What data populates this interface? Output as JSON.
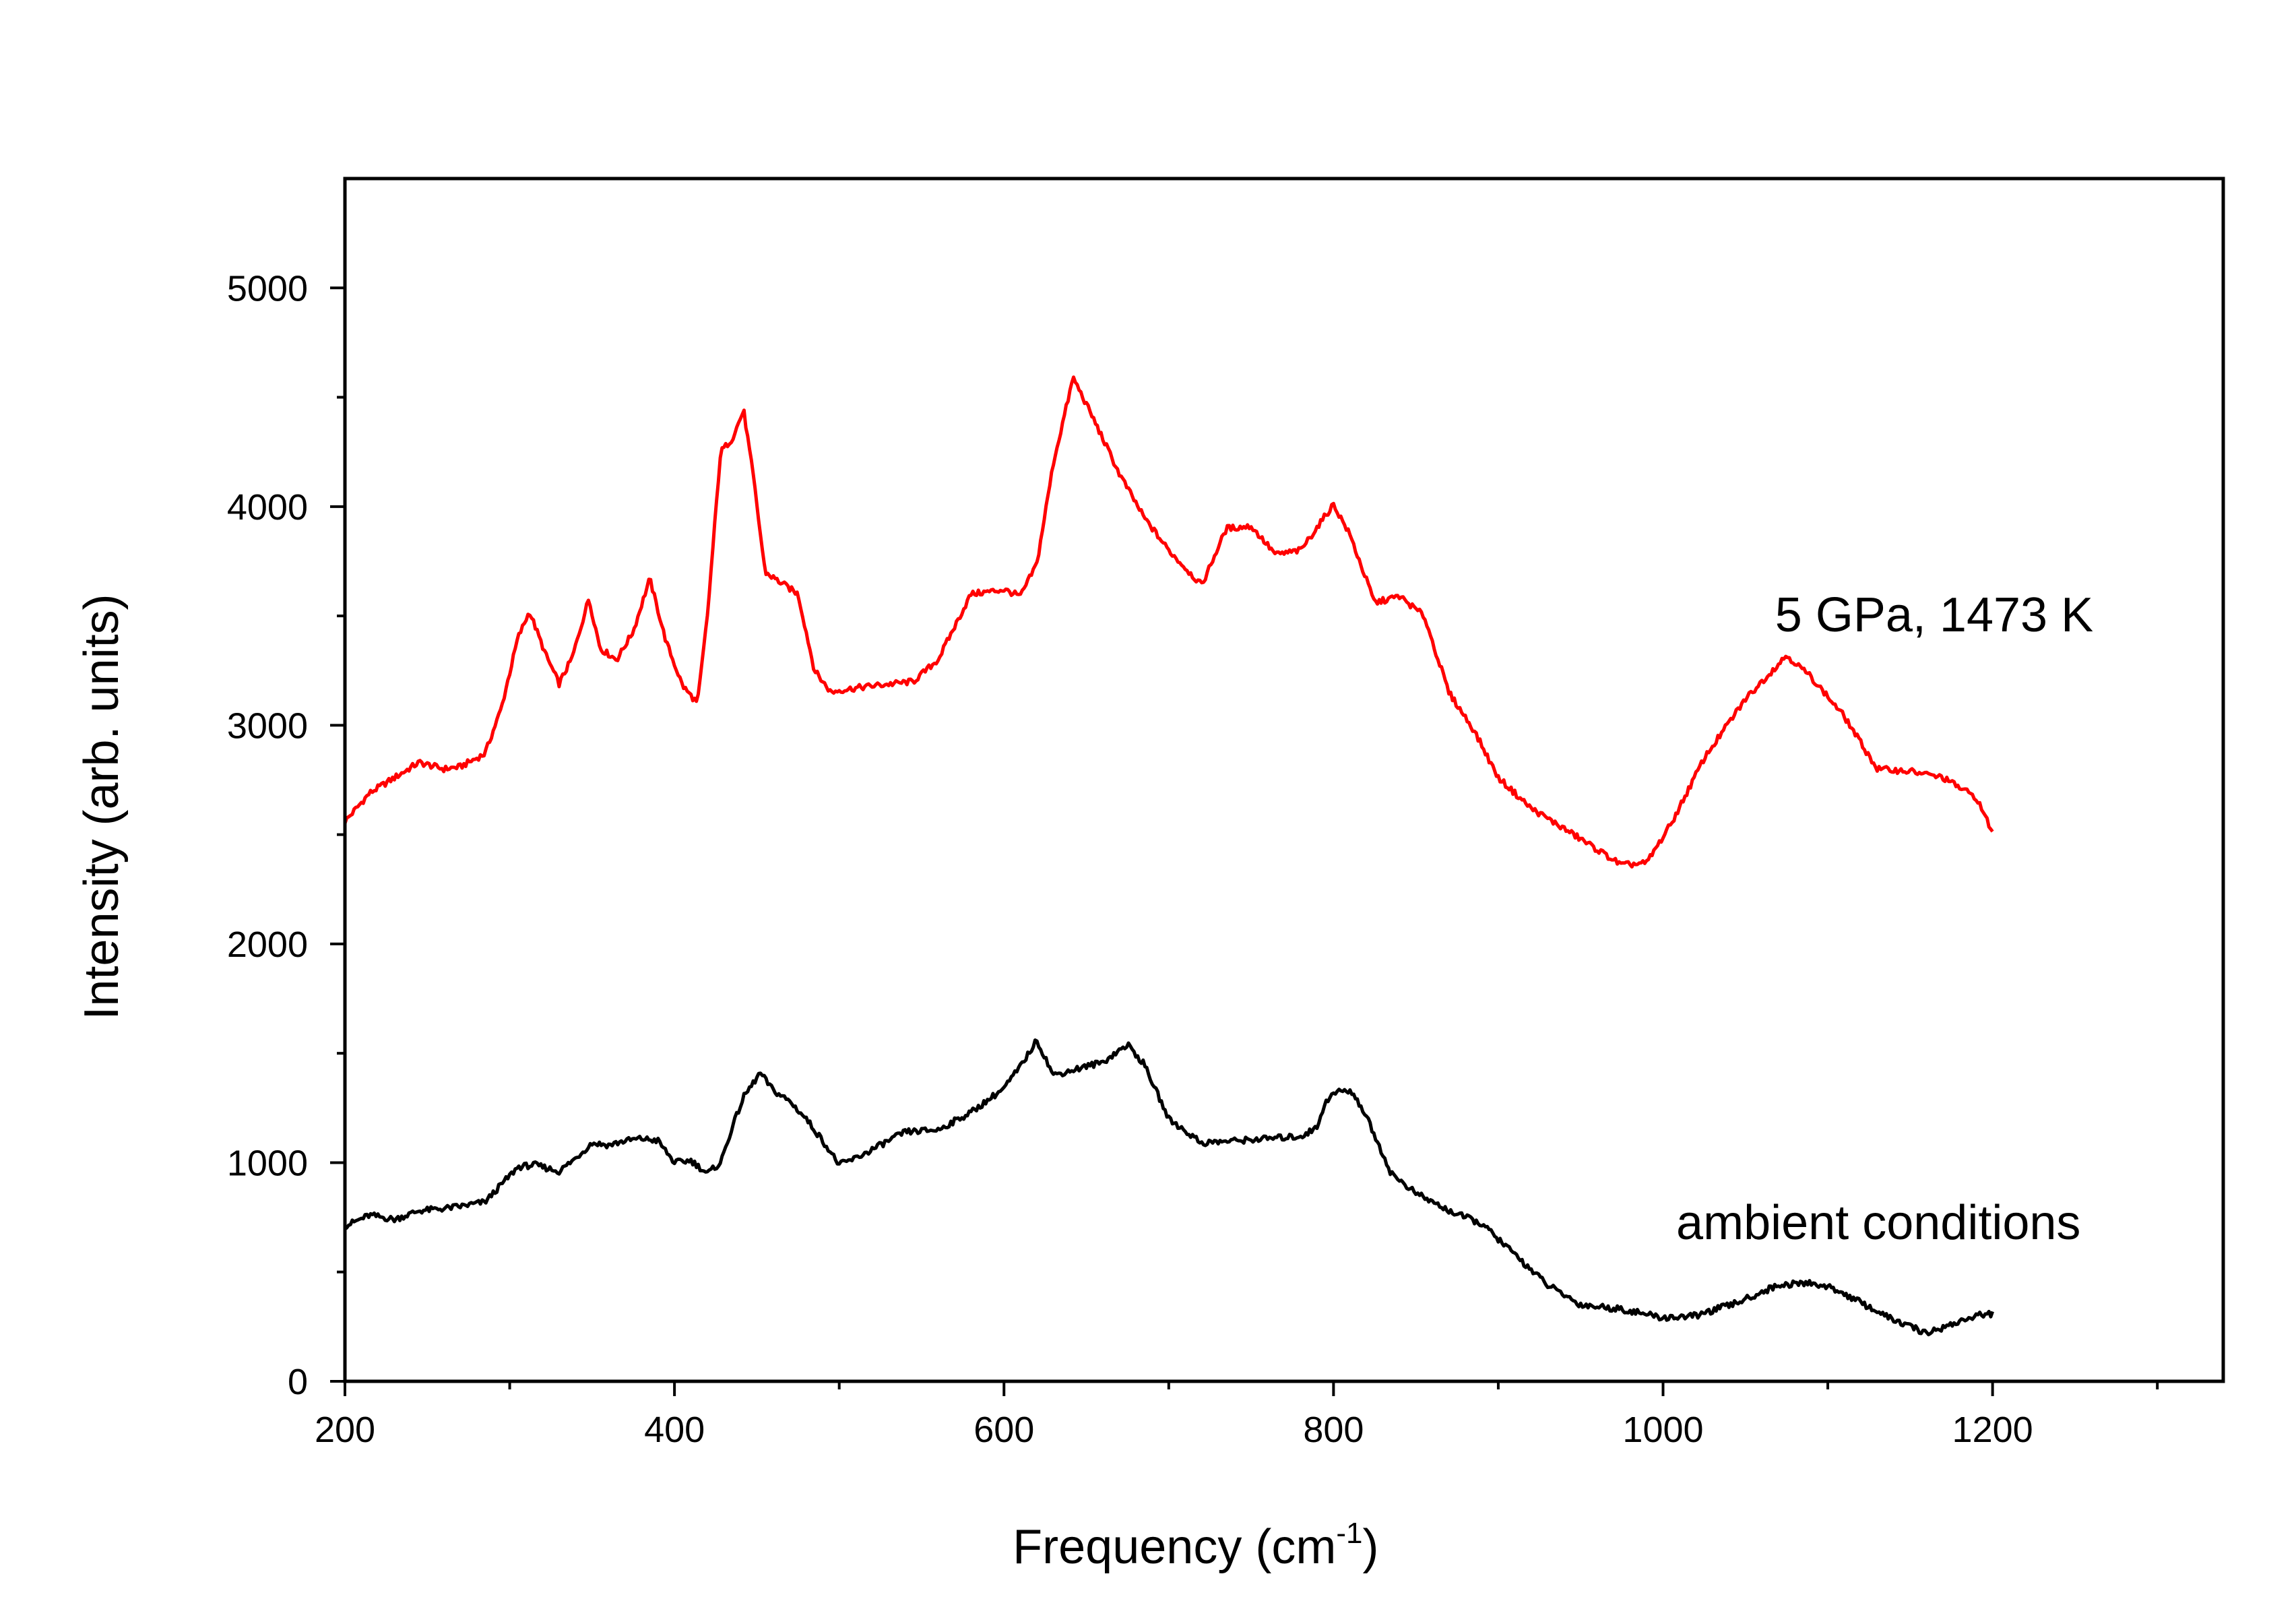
{
  "chart_data": {
    "type": "line",
    "title": "",
    "xlabel": "Frequency (cm",
    "xlabel_superscript": "-1",
    "xlabel_suffix": ")",
    "ylabel": "Intensity (arb. units)",
    "xlim": [
      200,
      1340
    ],
    "ylim": [
      0,
      5500
    ],
    "xticks": [
      200,
      400,
      600,
      800,
      1000,
      1200
    ],
    "yticks": [
      0,
      1000,
      2000,
      3000,
      4000,
      5000
    ],
    "grid": false,
    "series": [
      {
        "name": "5 GPa, 1473 K",
        "color": "#ff0000",
        "x": [
          200,
          215,
          230,
          245,
          260,
          270,
          285,
          295,
          305,
          312,
          322,
          330,
          338,
          348,
          355,
          365,
          375,
          385,
          395,
          405,
          414,
          420,
          428,
          435,
          442,
          448,
          455,
          465,
          475,
          485,
          495,
          500,
          520,
          545,
          560,
          580,
          600,
          610,
          620,
          630,
          642,
          655,
          670,
          685,
          700,
          720,
          735,
          750,
          765,
          780,
          800,
          810,
          825,
          840,
          855,
          870,
          885,
          900,
          920,
          950,
          975,
          990,
          1005,
          1025,
          1050,
          1075,
          1090,
          1110,
          1130,
          1150,
          1170,
          1190,
          1200
        ],
        "values": [
          2560,
          2690,
          2760,
          2830,
          2800,
          2810,
          2870,
          3080,
          3400,
          3520,
          3320,
          3190,
          3310,
          3580,
          3350,
          3300,
          3430,
          3670,
          3380,
          3180,
          3100,
          3500,
          4250,
          4310,
          4440,
          4130,
          3700,
          3650,
          3600,
          3250,
          3150,
          3160,
          3180,
          3200,
          3300,
          3600,
          3620,
          3590,
          3740,
          4200,
          4590,
          4390,
          4150,
          3950,
          3800,
          3640,
          3900,
          3910,
          3780,
          3800,
          4010,
          3870,
          3560,
          3590,
          3500,
          3150,
          2980,
          2760,
          2620,
          2480,
          2360,
          2370,
          2550,
          2850,
          3120,
          3320,
          3220,
          3040,
          2800,
          2790,
          2760,
          2670,
          2510
        ]
      },
      {
        "name": "ambient conditions",
        "color": "#000000",
        "x": [
          200,
          215,
          230,
          245,
          260,
          270,
          285,
          295,
          305,
          315,
          330,
          340,
          350,
          360,
          370,
          380,
          390,
          400,
          410,
          420,
          428,
          435,
          442,
          452,
          460,
          470,
          480,
          490,
          500,
          510,
          525,
          540,
          560,
          580,
          600,
          610,
          620,
          630,
          640,
          660,
          675,
          685,
          700,
          720,
          740,
          760,
          780,
          790,
          795,
          803,
          812,
          820,
          835,
          850,
          870,
          890,
          910,
          930,
          950,
          975,
          1000,
          1020,
          1045,
          1070,
          1090,
          1105,
          1120,
          1140,
          1160,
          1175,
          1190,
          1200
        ],
        "values": [
          710,
          760,
          740,
          780,
          790,
          800,
          820,
          900,
          980,
          990,
          960,
          1020,
          1090,
          1080,
          1100,
          1110,
          1100,
          1000,
          1010,
          950,
          1000,
          1160,
          1300,
          1410,
          1330,
          1280,
          1200,
          1100,
          990,
          1020,
          1080,
          1140,
          1150,
          1230,
          1340,
          1440,
          1560,
          1400,
          1420,
          1460,
          1540,
          1450,
          1200,
          1090,
          1100,
          1110,
          1120,
          1160,
          1280,
          1330,
          1320,
          1210,
          950,
          860,
          780,
          720,
          580,
          440,
          350,
          330,
          290,
          300,
          360,
          440,
          450,
          420,
          360,
          280,
          220,
          260,
          300,
          310
        ]
      }
    ],
    "annotations": [
      {
        "text": "5 GPa, 1473 K",
        "x": 1068,
        "y": 3430,
        "series": "5 GPa, 1473 K"
      },
      {
        "text": "ambient conditions",
        "x": 1008,
        "y": 650,
        "series": "ambient conditions"
      }
    ]
  }
}
